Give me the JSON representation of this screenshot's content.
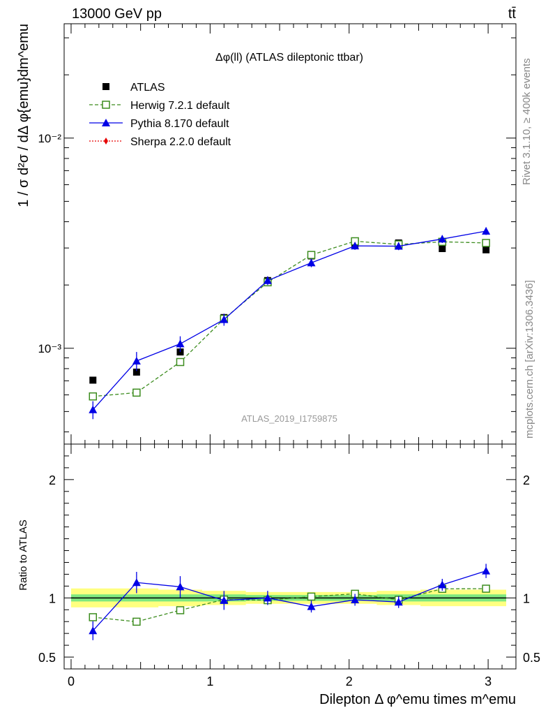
{
  "header": {
    "left": "13000 GeV pp",
    "right": "tt̄"
  },
  "side_labels": {
    "rivet": "Rivet 3.1.10, ≥ 400k events",
    "mcplots": "mcplots.cern.ch [arXiv:1306.3436]"
  },
  "chart_data": [
    {
      "type": "scatter",
      "title": "Δφ(ll) (ATLAS dileptonic ttbar)",
      "watermark": "ATLAS_2019_I1759875",
      "ylabel": "1 / σ  d²σ / dΔ φ{emu}dm^emu",
      "yscale": "log",
      "ylim": [
        0.00035,
        0.035
      ],
      "xlim": [
        -0.05,
        3.2
      ],
      "y_tick_labels": [
        "10⁻³",
        "10⁻²"
      ],
      "legend_position": "top-left",
      "x": [
        0.157,
        0.471,
        0.785,
        1.1,
        1.414,
        1.728,
        2.042,
        2.356,
        2.67,
        2.985
      ],
      "series": [
        {
          "name": "ATLAS",
          "color": "#000000",
          "marker": "square",
          "values": [
            0.000705,
            0.00077,
            0.00096,
            0.0014,
            0.0021,
            0.00275,
            0.00312,
            0.00317,
            0.00298,
            0.00294
          ]
        },
        {
          "name": "Herwig 7.2.1 default",
          "color": "#3c8c1e",
          "marker": "open-square",
          "line": "dashed",
          "values": [
            0.00059,
            0.000615,
            0.00086,
            0.00138,
            0.00206,
            0.00278,
            0.00323,
            0.00312,
            0.00321,
            0.00317
          ],
          "err": [
            2e-05,
            2e-05,
            3e-05,
            5e-05,
            6e-05,
            8e-05,
            9e-05,
            8e-05,
            9e-05,
            9e-05
          ]
        },
        {
          "name": "Pythia 8.170 default",
          "color": "#0000e6",
          "marker": "triangle",
          "line": "solid",
          "values": [
            0.00051,
            0.00087,
            0.00105,
            0.00137,
            0.0021,
            0.00255,
            0.00307,
            0.00306,
            0.00331,
            0.00361
          ],
          "err": [
            5e-05,
            9e-05,
            9e-05,
            9e-05,
            0.0001,
            0.00012,
            0.00013,
            0.00013,
            0.00014,
            0.00015
          ]
        },
        {
          "name": "Sherpa 2.2.0 default",
          "color": "#e60000",
          "marker": "diamond",
          "line": "dotted",
          "values": []
        }
      ]
    },
    {
      "type": "scatter",
      "ylabel": "Ratio to ATLAS",
      "xlabel": "Dilepton Δ φ^emu times m^emu",
      "ylim": [
        0.4,
        2.3
      ],
      "xlim": [
        -0.05,
        3.2
      ],
      "y_tick_labels": [
        "0.5",
        "1",
        "2"
      ],
      "x_tick_labels": [
        "0",
        "1",
        "2",
        "3"
      ],
      "x": [
        0.157,
        0.471,
        0.785,
        1.1,
        1.414,
        1.728,
        2.042,
        2.356,
        2.67,
        2.985
      ],
      "band_inner": [
        0.03,
        0.03,
        0.03,
        0.03,
        0.025,
        0.025,
        0.025,
        0.03,
        0.03,
        0.03
      ],
      "band_outer": [
        0.08,
        0.08,
        0.07,
        0.06,
        0.05,
        0.05,
        0.05,
        0.06,
        0.07,
        0.07
      ],
      "series": [
        {
          "name": "Herwig 7.2.1 default",
          "color": "#3c8c1e",
          "marker": "open-square",
          "line": "dashed",
          "values": [
            0.837,
            0.799,
            0.896,
            0.986,
            0.981,
            1.011,
            1.035,
            0.984,
            1.077,
            1.078
          ],
          "err": [
            0.03,
            0.03,
            0.03,
            0.035,
            0.035,
            0.03,
            0.03,
            0.03,
            0.03,
            0.03
          ]
        },
        {
          "name": "Pythia 8.170 default",
          "color": "#0000e6",
          "marker": "triangle",
          "line": "solid",
          "values": [
            0.723,
            1.13,
            1.094,
            0.979,
            1.0,
            0.927,
            0.984,
            0.965,
            1.111,
            1.228
          ],
          "err": [
            0.08,
            0.09,
            0.09,
            0.08,
            0.06,
            0.05,
            0.05,
            0.05,
            0.05,
            0.06
          ]
        }
      ]
    }
  ]
}
